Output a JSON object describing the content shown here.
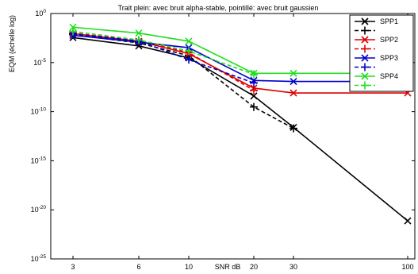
{
  "chart_data": {
    "type": "line",
    "title": "Trait plein: avec bruit alpha-stable, pointillé: avec bruit gaussien",
    "ylabel": "EQM (échelle log)",
    "xlabel": "SNR dB",
    "x": [
      "3",
      "6",
      "10",
      "20",
      "30",
      "100"
    ],
    "y_scale": "log",
    "ylim": [
      1e-25,
      1
    ],
    "y_ticks": [
      {
        "value": 1,
        "base": "10",
        "exp": "0"
      },
      {
        "value": 1e-05,
        "base": "10",
        "exp": "-5"
      },
      {
        "value": 1e-10,
        "base": "10",
        "exp": "-10"
      },
      {
        "value": 1e-15,
        "base": "10",
        "exp": "-15"
      },
      {
        "value": 1e-20,
        "base": "10",
        "exp": "-20"
      },
      {
        "value": 1e-25,
        "base": "10",
        "exp": "-25"
      }
    ],
    "legend_position": "top-right",
    "series": [
      {
        "name": "SPP1",
        "color": "#000000",
        "style": "solid",
        "marker": "x",
        "values": [
          0.0035,
          0.0005,
          3e-05,
          4e-09,
          2.5e-12,
          7.5e-22
        ]
      },
      {
        "name": "",
        "color": "#000000",
        "style": "dashed",
        "marker": "plus",
        "values": [
          0.007,
          0.001,
          5e-05,
          3e-10,
          2e-12,
          null
        ]
      },
      {
        "name": "SPP2",
        "color": "#dd0000",
        "style": "solid",
        "marker": "x",
        "values": [
          0.009,
          0.0015,
          8e-05,
          2.5e-08,
          8e-09,
          8e-09
        ]
      },
      {
        "name": "",
        "color": "#dd0000",
        "style": "dashed",
        "marker": "plus",
        "values": [
          0.01,
          0.0018,
          0.0001,
          1.5e-08,
          null,
          null
        ]
      },
      {
        "name": "SPP3",
        "color": "#0000cc",
        "style": "solid",
        "marker": "x",
        "values": [
          0.006,
          0.0012,
          0.00033,
          1.5e-07,
          1.2e-07,
          1.2e-07
        ]
      },
      {
        "name": "",
        "color": "#0000cc",
        "style": "dashed",
        "marker": "plus",
        "values": [
          0.008,
          0.0016,
          2e-05,
          8.5e-08,
          null,
          null
        ]
      },
      {
        "name": "SPP4",
        "color": "#22dd22",
        "style": "solid",
        "marker": "x",
        "values": [
          0.04,
          0.01,
          0.0015,
          8e-07,
          8e-07,
          8e-07
        ]
      },
      {
        "name": "",
        "color": "#22dd22",
        "style": "dashed",
        "marker": "plus",
        "values": [
          0.015,
          0.002,
          0.00015,
          6.5e-07,
          null,
          null
        ]
      }
    ]
  }
}
